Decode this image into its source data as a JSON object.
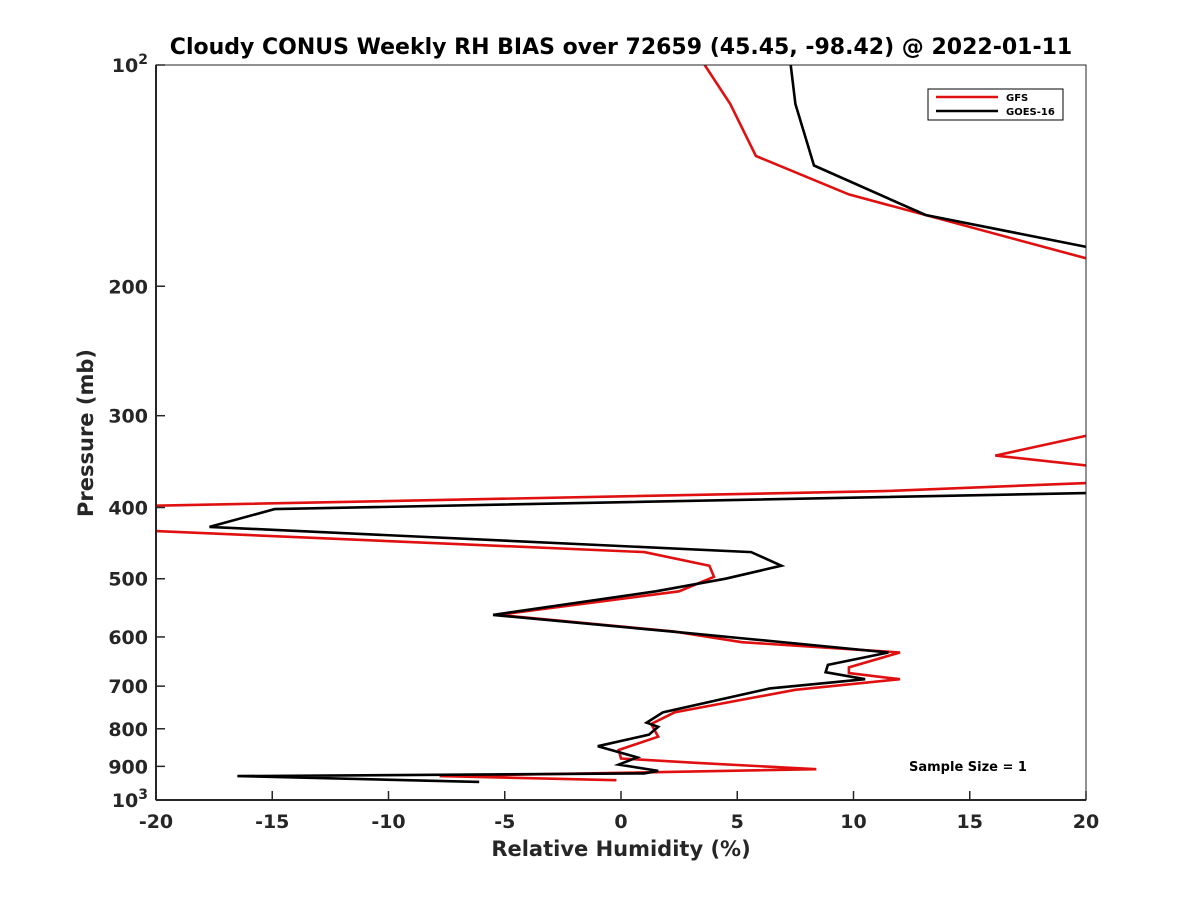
{
  "chart_data": {
    "type": "line",
    "title": "Cloudy CONUS Weekly RH BIAS over 72659 (45.45, -98.42) @ 2022-01-11",
    "xlabel": "Relative Humidity (%)",
    "ylabel": "Pressure (mb)",
    "xlim": [
      -20,
      20
    ],
    "ylim": [
      100,
      1000
    ],
    "y_scale": "log",
    "y_reversed": true,
    "grid": false,
    "legend_position": "top-right",
    "annotation": "Sample Size = 1",
    "x_ticks": [
      {
        "value": -20,
        "label": "-20"
      },
      {
        "value": -15,
        "label": "-15"
      },
      {
        "value": -10,
        "label": "-10"
      },
      {
        "value": -5,
        "label": "-5"
      },
      {
        "value": 0,
        "label": "0"
      },
      {
        "value": 5,
        "label": "5"
      },
      {
        "value": 10,
        "label": "10"
      },
      {
        "value": 15,
        "label": "15"
      },
      {
        "value": 20,
        "label": "20"
      }
    ],
    "y_ticks": [
      {
        "value": 100,
        "base": "10",
        "exp": "2"
      },
      {
        "value": 200,
        "label": "200"
      },
      {
        "value": 300,
        "label": "300"
      },
      {
        "value": 400,
        "label": "400"
      },
      {
        "value": 500,
        "label": "500"
      },
      {
        "value": 600,
        "label": "600"
      },
      {
        "value": 700,
        "label": "700"
      },
      {
        "value": 800,
        "label": "800"
      },
      {
        "value": 900,
        "label": "900"
      },
      {
        "value": 1000,
        "base": "10",
        "exp": "3"
      }
    ],
    "series": [
      {
        "name": "GFS",
        "color": "#e01010",
        "x": [
          3.6,
          4.7,
          5.8,
          9.8,
          20.5,
          20.5,
          16.1,
          20.5,
          20.5,
          11.3,
          -20.5,
          -20.5,
          1.0,
          3.8,
          4.0,
          2.5,
          -5.3,
          2.3,
          5.2,
          12.0,
          9.8,
          9.8,
          12.0,
          7.5,
          2.3,
          1.3,
          1.6,
          -0.1,
          0.0,
          3.2,
          8.4,
          -7.8,
          -0.2
        ],
        "y": [
          100,
          113,
          133,
          150,
          185,
          317,
          340,
          352,
          370,
          380,
          398,
          430,
          460,
          480,
          497,
          520,
          560,
          590,
          610,
          630,
          660,
          672,
          685,
          708,
          760,
          788,
          820,
          855,
          878,
          890,
          908,
          928,
          940
        ]
      },
      {
        "name": "GOES-16",
        "color": "#000000",
        "x": [
          7.3,
          7.5,
          8.3,
          13.1,
          20.5,
          20.5,
          -14.9,
          -17.7,
          5.6,
          6.9,
          4.5,
          1.5,
          -5.5,
          2.2,
          5.3,
          11.5,
          8.9,
          8.8,
          10.5,
          6.4,
          1.8,
          1.1,
          1.6,
          1.2,
          -1.0,
          0.7,
          -0.1,
          1.6,
          1.0,
          -16.5,
          -6.1
        ],
        "y": [
          100,
          113,
          137,
          160,
          178,
          382,
          402,
          425,
          460,
          480,
          500,
          520,
          560,
          590,
          603,
          630,
          655,
          670,
          685,
          705,
          760,
          785,
          795,
          815,
          845,
          875,
          895,
          913,
          920,
          928,
          945
        ]
      }
    ]
  }
}
